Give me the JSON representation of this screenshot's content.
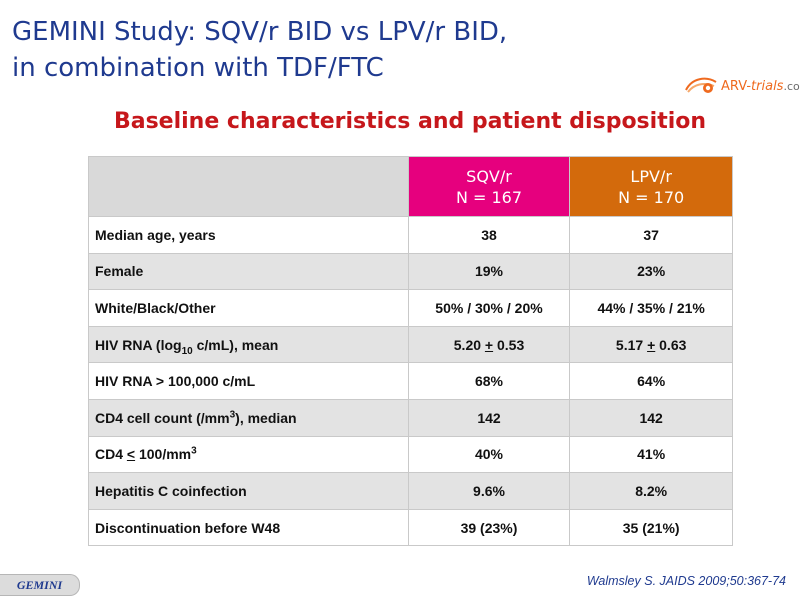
{
  "slide": {
    "title_line1": "GEMINI Study: SQV/r BID vs LPV/r BID,",
    "title_line2": "in combination with TDF/FTC",
    "subtitle": "Baseline characteristics and patient disposition"
  },
  "logo": {
    "part1": "ARV-",
    "part2": "trials",
    "part3": ".com",
    "icon": "arv-trials-logo-icon"
  },
  "table": {
    "columns": [
      {
        "arm": "SQV/r",
        "n": "N = 167",
        "color": "#e6007e"
      },
      {
        "arm": "LPV/r",
        "n": "N = 170",
        "color": "#d36a0c"
      }
    ],
    "rows": [
      {
        "label": "Median age, years",
        "sqv": "38",
        "lpv": "37"
      },
      {
        "label": "Female",
        "sqv": "19%",
        "lpv": "23%"
      },
      {
        "label": "White/Black/Other",
        "sqv": "50% / 30% / 20%",
        "lpv": "44% / 35% / 21%"
      },
      {
        "label_pre": "HIV RNA (log",
        "label_sub": "10",
        "label_post": " c/mL), mean",
        "sqv_a": "5.20 ",
        "sqv_pm": "+",
        "sqv_b": " 0.53",
        "lpv_a": "5.17 ",
        "lpv_pm": "+",
        "lpv_b": " 0.63"
      },
      {
        "label": "HIV RNA > 100,000 c/mL",
        "sqv": "68%",
        "lpv": "64%"
      },
      {
        "label_pre": "CD4 cell count (/mm",
        "label_sup": "3",
        "label_post": "), median",
        "sqv": "142",
        "lpv": "142"
      },
      {
        "label_pre": "CD4 ",
        "label_ul": "<",
        "label_mid": " 100/mm",
        "label_sup": "3",
        "sqv": "40%",
        "lpv": "41%"
      },
      {
        "label": "Hepatitis C coinfection",
        "sqv": "9.6%",
        "lpv": "8.2%"
      },
      {
        "label": "Discontinuation before W48",
        "sqv": "39 (23%)",
        "lpv": "35 (21%)"
      }
    ]
  },
  "footer": {
    "citation": "Walmsley S. JAIDS 2009;50:367-74",
    "study_tag": "GEMINI"
  },
  "colors": {
    "title": "#1f3a8f",
    "subtitle": "#c6171b",
    "sqv_header": "#e6007e",
    "lpv_header": "#d36a0c",
    "logo_accent": "#ef6a1f"
  }
}
